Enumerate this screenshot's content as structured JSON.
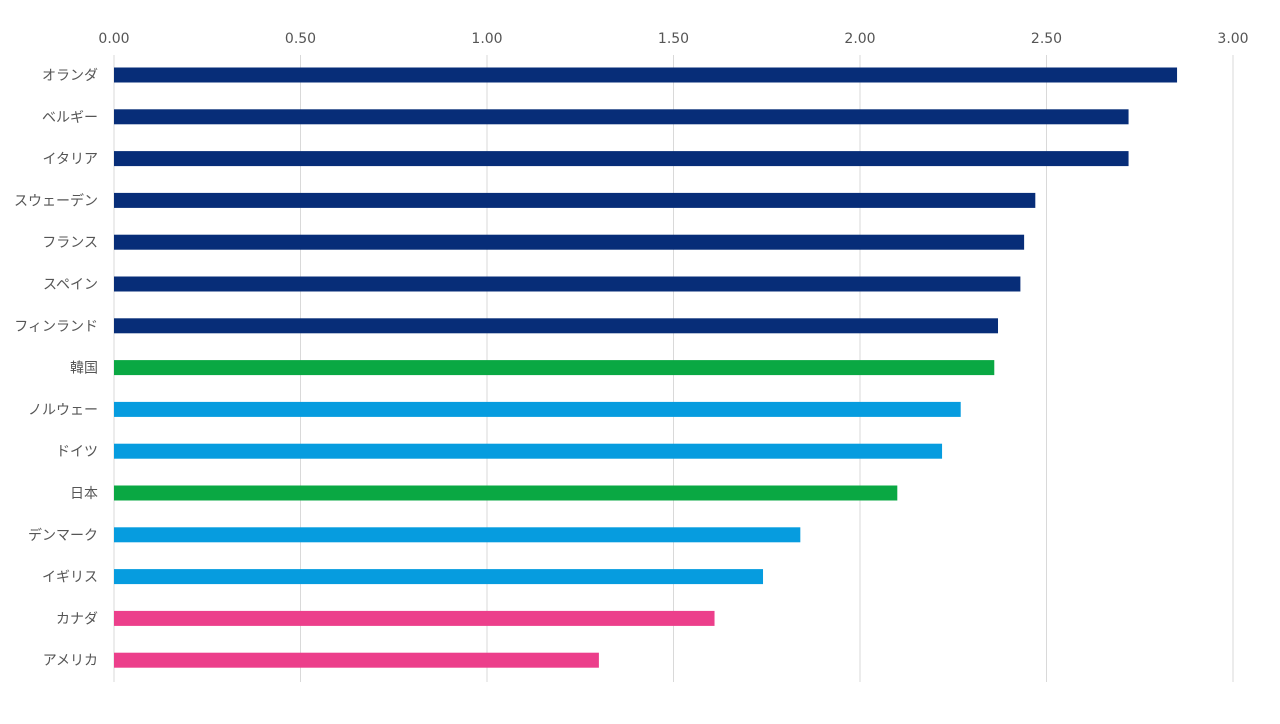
{
  "chart_data": {
    "type": "bar",
    "orientation": "horizontal",
    "title": "",
    "xlabel": "",
    "ylabel": "",
    "xlim": [
      0,
      3.0
    ],
    "x_ticks": [
      "0.00",
      "0.50",
      "1.00",
      "1.50",
      "2.00",
      "2.50",
      "3.00"
    ],
    "x_tick_values": [
      0,
      0.5,
      1.0,
      1.5,
      2.0,
      2.5,
      3.0
    ],
    "x_axis_position": "top",
    "grid": "vertical",
    "legend": "none",
    "colors": {
      "navy": "#072D78",
      "green": "#0AA843",
      "sky": "#069CDF",
      "pink": "#EC3F8B",
      "grid": "#D9D9D9",
      "text": "#555555"
    },
    "categories": [
      "オランダ",
      "ベルギー",
      "イタリア",
      "スウェーデン",
      "フランス",
      "スペイン",
      "フィンランド",
      "韓国",
      "ノルウェー",
      "ドイツ",
      "日本",
      "デンマーク",
      "イギリス",
      "カナダ",
      "アメリカ"
    ],
    "values": [
      2.85,
      2.72,
      2.72,
      2.47,
      2.44,
      2.43,
      2.37,
      2.36,
      2.27,
      2.22,
      2.1,
      1.84,
      1.74,
      1.61,
      1.3
    ],
    "bar_colors": [
      "#072D78",
      "#072D78",
      "#072D78",
      "#072D78",
      "#072D78",
      "#072D78",
      "#072D78",
      "#0AA843",
      "#069CDF",
      "#069CDF",
      "#0AA843",
      "#069CDF",
      "#069CDF",
      "#EC3F8B",
      "#EC3F8B"
    ]
  }
}
